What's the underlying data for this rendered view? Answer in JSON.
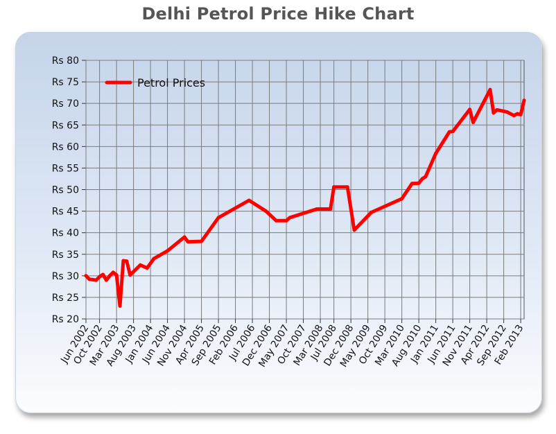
{
  "chart_data": {
    "type": "line",
    "title": "Delhi Petrol Price Hike Chart",
    "ylim": [
      20,
      80
    ],
    "y_ticks": [
      20,
      25,
      30,
      35,
      40,
      45,
      50,
      55,
      60,
      65,
      70,
      75,
      80
    ],
    "y_tick_prefix": "Rs ",
    "x_tick_labels": [
      "Jun 2002",
      "Oct 2002",
      "Mar 2003",
      "Aug 2003",
      "Jan 2004",
      "Jun 2004",
      "Nov 2004",
      "Apr 2005",
      "Sep 2005",
      "Feb 2006",
      "Jul 2006",
      "Dec 2006",
      "May 2007",
      "Oct 2007",
      "Mar 2008",
      "Jul 2008",
      "Dec 2008",
      "May 2009",
      "Oct 2009",
      "Mar 2010",
      "Aug 2010",
      "Jan 2011",
      "Jun 2011",
      "Nov 2011",
      "Apr 2012",
      "Sep 2012",
      "Feb 2013"
    ],
    "grid": true,
    "legend_position": "top-left",
    "series": [
      {
        "name": "Petrol Prices",
        "color": "#ff0000",
        "points": [
          [
            "Jun 2002",
            30.0
          ],
          [
            "Jul 2002",
            29.2
          ],
          [
            "Aug 2002",
            29.1
          ],
          [
            "Sep 2002",
            29.0
          ],
          [
            "Oct 2002",
            29.8
          ],
          [
            "Nov 2002",
            30.3
          ],
          [
            "Dec 2002",
            29.0
          ],
          [
            "Jan 2003",
            30.0
          ],
          [
            "Feb 2003",
            30.8
          ],
          [
            "Mar 2003",
            30.2
          ],
          [
            "Apr 2003",
            23.0
          ],
          [
            "May 2003",
            33.5
          ],
          [
            "Jun 2003",
            33.4
          ],
          [
            "Jul 2003",
            30.2
          ],
          [
            "Oct 2003",
            32.5
          ],
          [
            "Dec 2003",
            31.8
          ],
          [
            "Jan 2004",
            32.9
          ],
          [
            "Feb 2004",
            34.0
          ],
          [
            "Jun 2004",
            35.8
          ],
          [
            "Nov 2004",
            39.0
          ],
          [
            "Dec 2004",
            37.9
          ],
          [
            "Apr 2005",
            38.0
          ],
          [
            "Sep 2005",
            43.5
          ],
          [
            "Jun 2006",
            47.5
          ],
          [
            "Nov 2006",
            45.0
          ],
          [
            "Feb 2007",
            42.8
          ],
          [
            "May 2007",
            42.8
          ],
          [
            "Jun 2007",
            43.5
          ],
          [
            "Feb 2008",
            45.5
          ],
          [
            "Jun 2008",
            45.5
          ],
          [
            "Jul 2008",
            50.6
          ],
          [
            "Nov 2008",
            50.6
          ],
          [
            "Dec 2008",
            45.6
          ],
          [
            "Jan 2009",
            40.6
          ],
          [
            "Jun 2009",
            44.7
          ],
          [
            "Mar 2010",
            47.9
          ],
          [
            "Jun 2010",
            51.4
          ],
          [
            "Aug 2010",
            51.5
          ],
          [
            "Sep 2010",
            52.5
          ],
          [
            "Oct 2010",
            53.0
          ],
          [
            "Jan 2011",
            58.4
          ],
          [
            "May 2011",
            63.4
          ],
          [
            "Jun 2011",
            63.5
          ],
          [
            "Nov 2011",
            68.6
          ],
          [
            "Dec 2011",
            65.6
          ],
          [
            "May 2012",
            73.2
          ],
          [
            "Jun 2012",
            67.8
          ],
          [
            "Jul 2012",
            68.5
          ],
          [
            "Sep 2012",
            68.2
          ],
          [
            "Oct 2012",
            68.0
          ],
          [
            "Dec 2012",
            67.2
          ],
          [
            "Jan 2013",
            67.6
          ],
          [
            "Feb 2013",
            67.4
          ],
          [
            "Mar 2013",
            70.7
          ]
        ]
      }
    ]
  }
}
